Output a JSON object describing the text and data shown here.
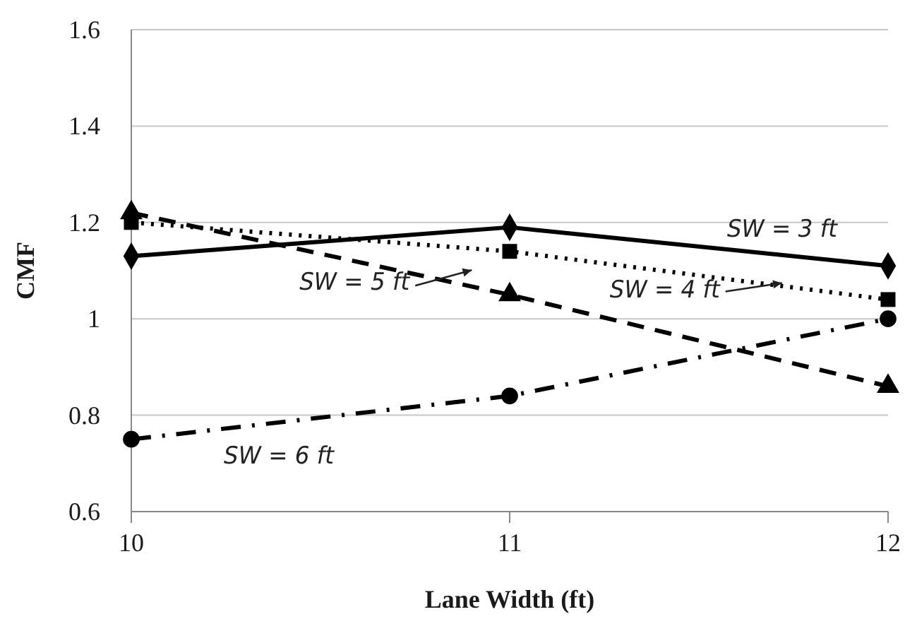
{
  "chart_data": {
    "type": "line",
    "xlabel": "Lane Width (ft)",
    "ylabel": "CMF",
    "x": [
      10,
      11,
      12
    ],
    "xlim": [
      10,
      12
    ],
    "xticks": [
      10,
      11,
      12
    ],
    "ylim": [
      0.6,
      1.6
    ],
    "yticks": [
      0.6,
      0.8,
      1,
      1.2,
      1.4,
      1.6
    ],
    "grid": "y",
    "series": [
      {
        "name": "SW = 3 ft",
        "color": "#000000",
        "values": [
          1.13,
          1.19,
          1.11
        ],
        "marker": "diamond",
        "line_style": "solid"
      },
      {
        "name": "SW = 4 ft",
        "color": "#000000",
        "values": [
          1.2,
          1.14,
          1.04
        ],
        "marker": "square",
        "line_style": "dotted"
      },
      {
        "name": "SW = 5 ft",
        "color": "#000000",
        "values": [
          1.22,
          1.05,
          0.86
        ],
        "marker": "triangle",
        "line_style": "dashed"
      },
      {
        "name": "SW = 6 ft",
        "color": "#000000",
        "values": [
          0.75,
          0.84,
          1.0
        ],
        "marker": "circle",
        "line_style": "dashdot"
      }
    ]
  }
}
